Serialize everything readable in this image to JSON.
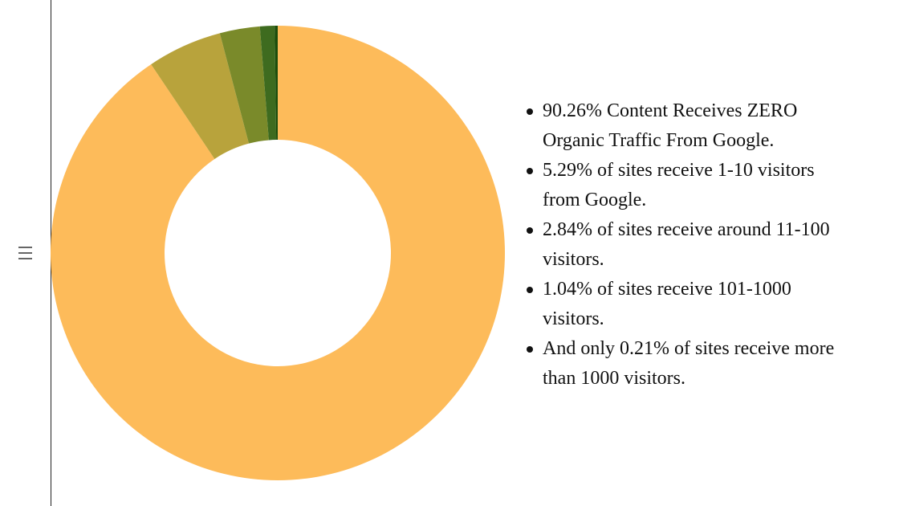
{
  "chart_data": {
    "type": "donut",
    "values": [
      90.26,
      5.29,
      2.84,
      1.04,
      0.21
    ],
    "colors": [
      "#fdbb5a",
      "#b8a33c",
      "#7a8a2a",
      "#3e6b1f",
      "#1b4d0b"
    ],
    "items": [
      "90.26% Content Receives ZERO Organic Traffic From Google.",
      "5.29% of sites receive 1-10 visitors from Google.",
      "2.84% of sites receive around 11-100 visitors.",
      "1.04% of sites receive 101-1000 visitors.",
      "And only 0.21% of sites receive more than 1000 visitors."
    ]
  }
}
